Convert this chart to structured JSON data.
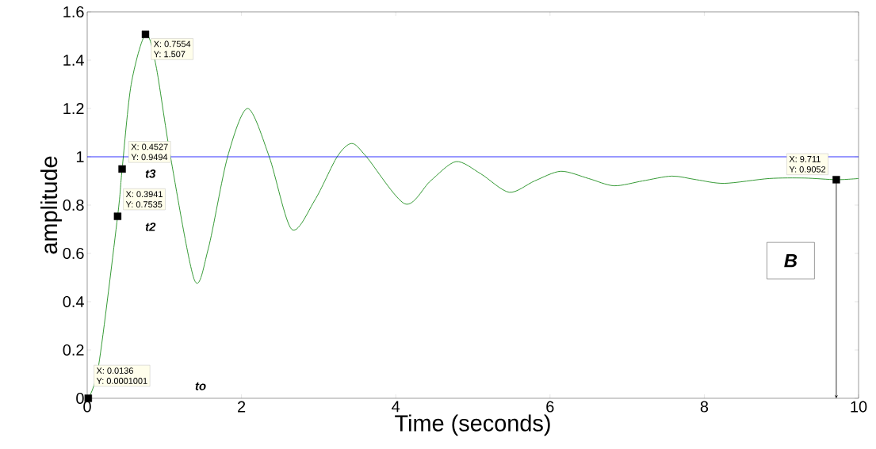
{
  "chart_data": {
    "type": "line",
    "xlabel": "Time (seconds)",
    "ylabel": "amplitude",
    "x": [
      0.0136,
      0.15,
      0.3941,
      0.4527,
      0.57,
      0.7554,
      0.89,
      1.08,
      1.39,
      1.57,
      1.82,
      2.08,
      2.36,
      2.65,
      2.95,
      3.24,
      3.43,
      3.62,
      4.12,
      4.45,
      4.78,
      5.1,
      5.47,
      5.8,
      6.14,
      6.5,
      6.83,
      7.2,
      7.58,
      7.9,
      8.26,
      8.84,
      9.3,
      9.711,
      10
    ],
    "series": [
      {
        "color": "#1f8f1f",
        "values": [
          0,
          0.14,
          0.7535,
          0.9494,
          1.3,
          1.507,
          1.38,
          1.0,
          0.49,
          0.62,
          1.0,
          1.2,
          1.0,
          0.7,
          0.82,
          1.0,
          1.055,
          1.0,
          0.805,
          0.9,
          0.98,
          0.93,
          0.853,
          0.9,
          0.94,
          0.91,
          0.88,
          0.9,
          0.92,
          0.905,
          0.89,
          0.91,
          0.912,
          0.9052,
          0.91
        ]
      }
    ],
    "xlim": [
      0,
      10
    ],
    "xticks": [
      0,
      2,
      4,
      6,
      8,
      10
    ],
    "ylim": [
      0,
      1.6
    ],
    "yticks": [
      0,
      0.2,
      0.4,
      0.6,
      0.8,
      1,
      1.2,
      1.4,
      1.6
    ],
    "ref_lines": [
      {
        "axis": "y",
        "value": 1,
        "color": "#0000ff"
      }
    ],
    "annotations": [
      {
        "text": "X: 0.0136",
        "x": 0.0136,
        "y": 0.0001001
      },
      "Y: 0.0001001",
      {
        "text": "X: 0.3941",
        "x": 0.3941,
        "y": 0.7535
      },
      "Y: 0.7535",
      {
        "text": "X: 0.4527",
        "x": 0.4527,
        "y": 0.9494
      },
      "Y: 0.9494",
      {
        "text": "X: 0.7554",
        "x": 0.7554,
        "y": 1.507
      },
      "Y: 1.507",
      {
        "text": "X: 9.711",
        "x": 9.711,
        "y": 0.9052
      },
      "Y: 0.9052",
      "t3",
      "t2",
      "to",
      "B"
    ],
    "grid": false
  }
}
